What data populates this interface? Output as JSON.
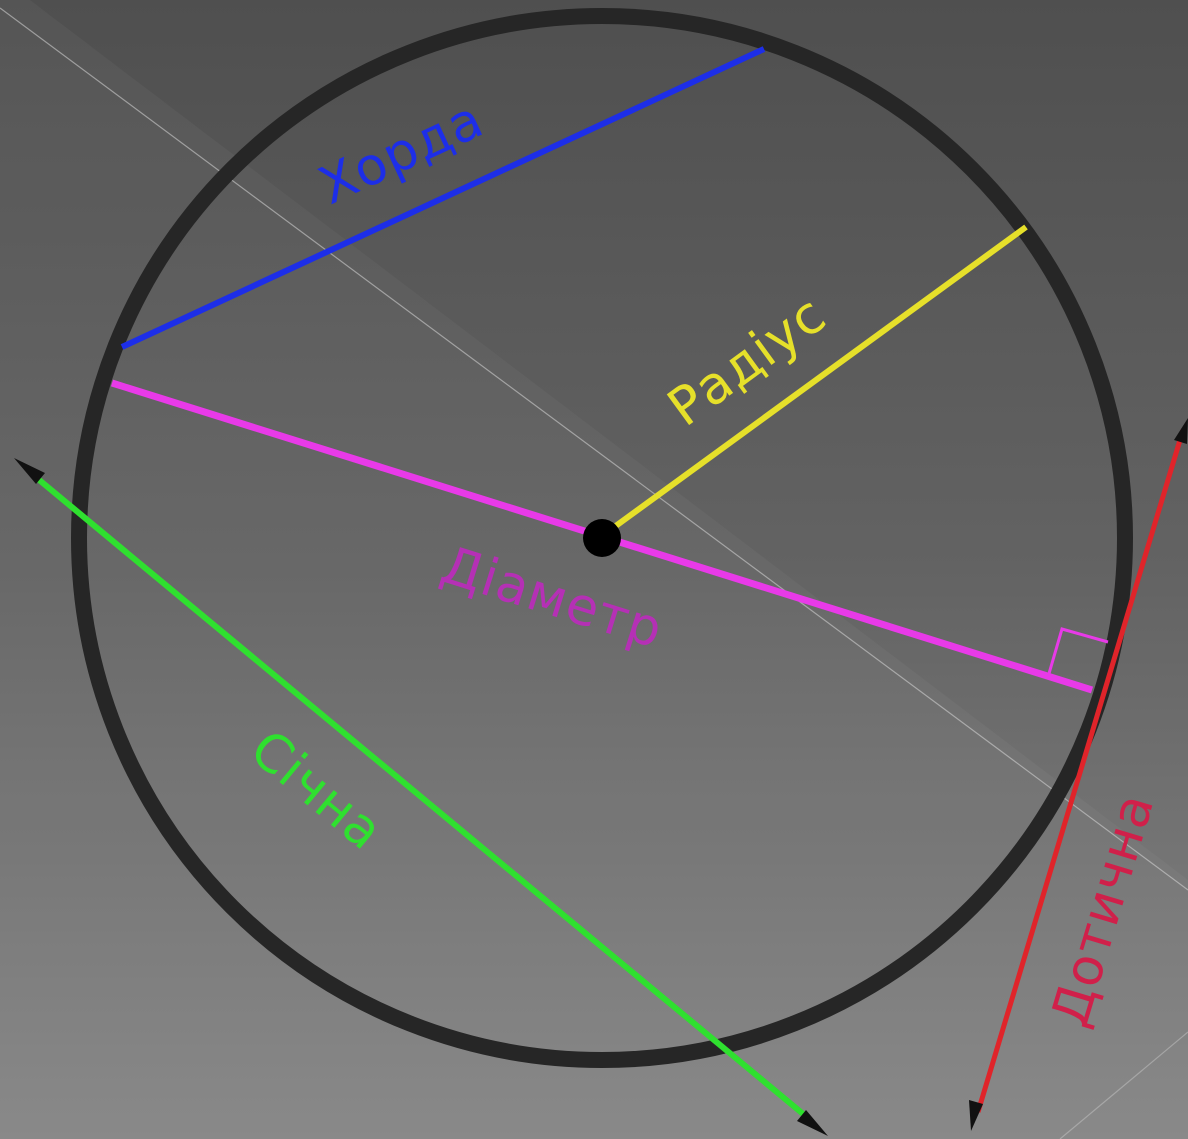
{
  "diagram": {
    "labels": {
      "chord": "Хорда",
      "radius": "Радіус",
      "diameter": "Діаметр",
      "secant": "Січна",
      "tangent": "Дотична"
    },
    "colors": {
      "circle": "#262626",
      "chord": "#1d2ee8",
      "radius": "#e6e02a",
      "diameter": "#e83ae8",
      "diameter_label": "#b530b5",
      "secant": "#2fe02f",
      "tangent": "#e0242a",
      "tangent_label": "#d0204a",
      "center": "#000000",
      "arrowhead": "#111111"
    }
  }
}
